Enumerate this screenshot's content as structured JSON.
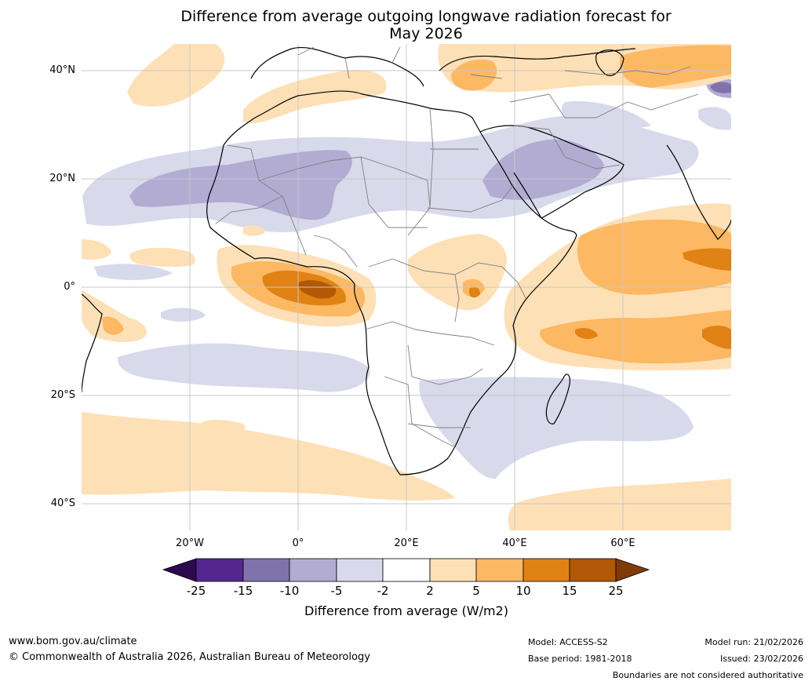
{
  "title": {
    "line1": "Difference from average outgoing longwave radiation forecast for",
    "line2": "May 2026"
  },
  "axes": {
    "lat_ticks": [
      "40°N",
      "20°N",
      "0°",
      "20°S",
      "40°S"
    ],
    "lon_ticks": [
      "20°W",
      "0°",
      "20°E",
      "40°E",
      "60°E"
    ]
  },
  "legend": {
    "title": "Difference from average (W/m2)",
    "ticks": [
      "-25",
      "-15",
      "-10",
      "-5",
      "-2",
      "2",
      "5",
      "10",
      "15",
      "25"
    ],
    "colors": {
      "lt_-25": "#2d0a4e",
      "-25_-15": "#54278f",
      "-15_-10": "#8073ac",
      "-10_-5": "#b2abd2",
      "-5_-2": "#d8daeb",
      "-2_2": "#ffffff",
      "2_5": "#fee0b6",
      "5_10": "#fdb863",
      "10_15": "#e08214",
      "15_25": "#b35806",
      "gt_25": "#7f3b08"
    }
  },
  "footer": {
    "website": "www.bom.gov.au/climate",
    "copyright": "© Commonwealth of Australia 2026, Australian Bureau of Meteorology",
    "model": "Model: ACCESS-S2",
    "base_period": "Base period: 1981-2018",
    "model_run": "Model run: 21/02/2026",
    "issued": "Issued: 23/02/2026",
    "disclaimer": "Boundaries are not considered authoritative"
  }
}
